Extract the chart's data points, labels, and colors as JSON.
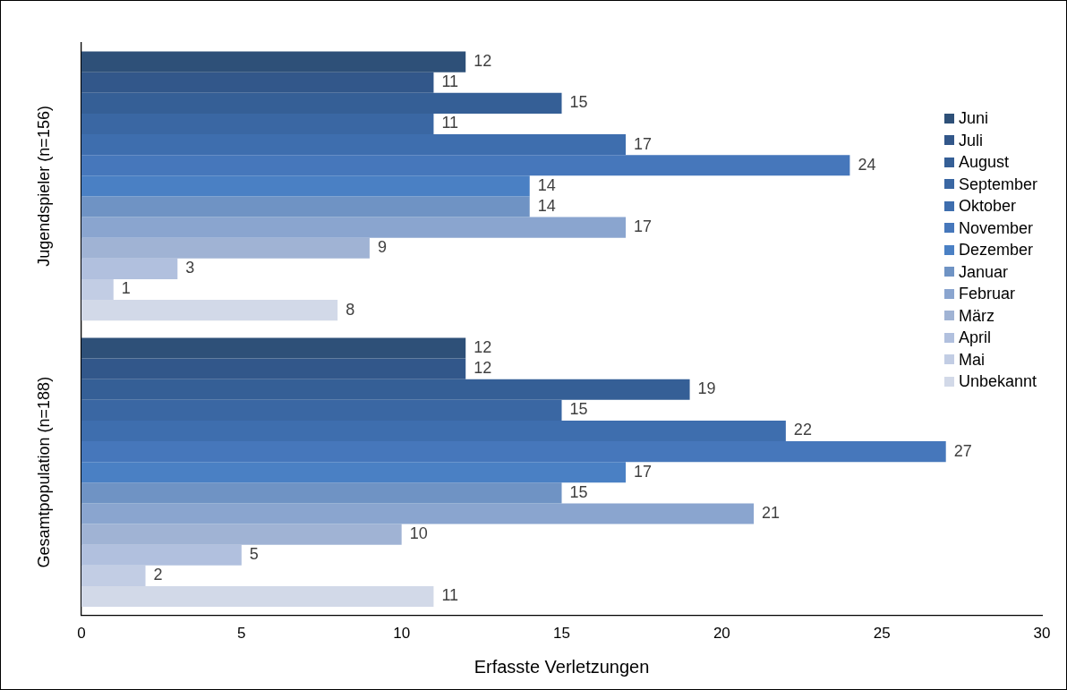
{
  "chart_data": {
    "type": "bar",
    "orientation": "horizontal",
    "xlabel": "Erfasste Verletzungen",
    "categories": [
      "Jugendspieler (n=156)",
      "Gesamtpopulation (n=188)"
    ],
    "series": [
      {
        "name": "Juni",
        "color": "#2e5078",
        "values": [
          12,
          12
        ]
      },
      {
        "name": "Juli",
        "color": "#32578a",
        "values": [
          11,
          12
        ]
      },
      {
        "name": "August",
        "color": "#355f96",
        "values": [
          15,
          19
        ]
      },
      {
        "name": "September",
        "color": "#3a67a3",
        "values": [
          11,
          15
        ]
      },
      {
        "name": "Oktober",
        "color": "#3e6eae",
        "values": [
          17,
          22
        ]
      },
      {
        "name": "November",
        "color": "#4677bb",
        "values": [
          24,
          27
        ]
      },
      {
        "name": "Dezember",
        "color": "#4a80c4",
        "values": [
          14,
          17
        ]
      },
      {
        "name": "Januar",
        "color": "#6f93c4",
        "values": [
          14,
          15
        ]
      },
      {
        "name": "Februar",
        "color": "#8aa5cf",
        "values": [
          17,
          21
        ]
      },
      {
        "name": "März",
        "color": "#a0b3d4",
        "values": [
          9,
          10
        ]
      },
      {
        "name": "April",
        "color": "#b1c0de",
        "values": [
          3,
          5
        ]
      },
      {
        "name": "Mai",
        "color": "#c2cde4",
        "values": [
          1,
          2
        ]
      },
      {
        "name": "Unbekannt",
        "color": "#d2d9e8",
        "values": [
          8,
          11
        ]
      }
    ],
    "xlim": [
      0,
      30
    ],
    "xticks": [
      0,
      5,
      10,
      15,
      20,
      25,
      30
    ],
    "data_labels": true,
    "grid": false,
    "legend": "right"
  }
}
